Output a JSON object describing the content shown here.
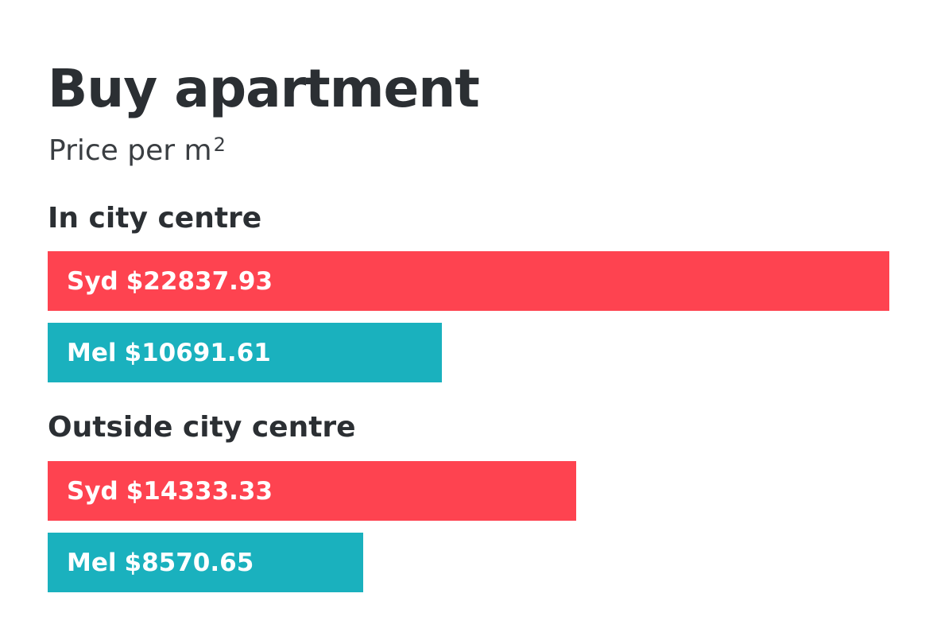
{
  "title": "Buy apartment",
  "subtitle": "Price per m",
  "subtitle_sup": "2",
  "colors": {
    "syd": "#fe4350",
    "mel": "#1ab1be",
    "text": "#2b2f33"
  },
  "chart_data": {
    "type": "bar",
    "orientation": "horizontal",
    "title": "Buy apartment",
    "subtitle": "Price per m2",
    "groups": [
      {
        "label": "In city centre",
        "bars": [
          {
            "city": "Syd",
            "value_label": "$22837.93",
            "value": 22837.93,
            "color": "#fe4350"
          },
          {
            "city": "Mel",
            "value_label": "$10691.61",
            "value": 10691.61,
            "color": "#1ab1be"
          }
        ]
      },
      {
        "label": "Outside city centre",
        "bars": [
          {
            "city": "Syd",
            "value_label": "$14333.33",
            "value": 14333.33,
            "color": "#fe4350"
          },
          {
            "city": "Mel",
            "value_label": "$8570.65",
            "value": 8570.65,
            "color": "#1ab1be"
          }
        ]
      }
    ]
  }
}
